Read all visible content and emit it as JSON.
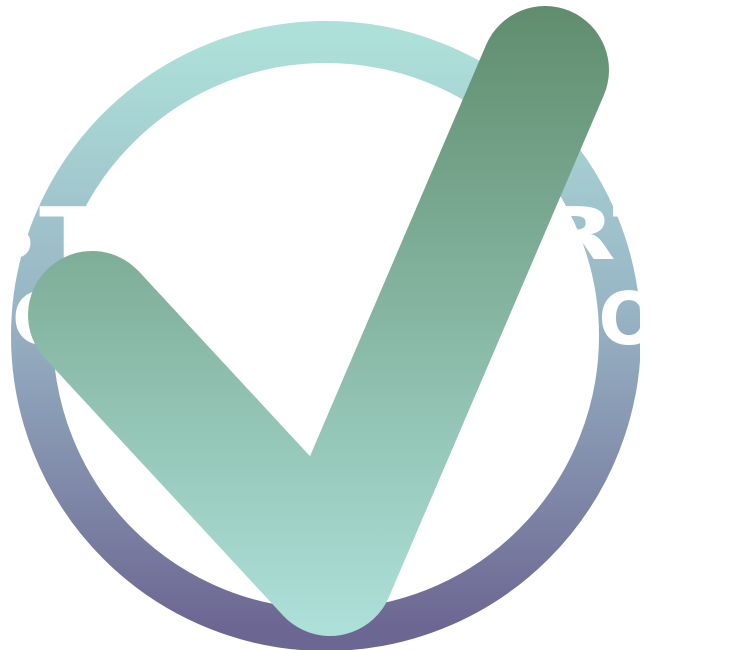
{
  "logo": {
    "text_lines": [
      "STOP. START.",
      "GET THINGS DONE"
    ],
    "colors": {
      "ring_top": "#ade0d9",
      "ring_mid": "#98b5c5",
      "ring_bottom": "#6c6692",
      "check_top": "#5f8c6c",
      "check_bottom": "#ade0d9",
      "text": "#ffffff",
      "background": "#ffffff"
    }
  }
}
